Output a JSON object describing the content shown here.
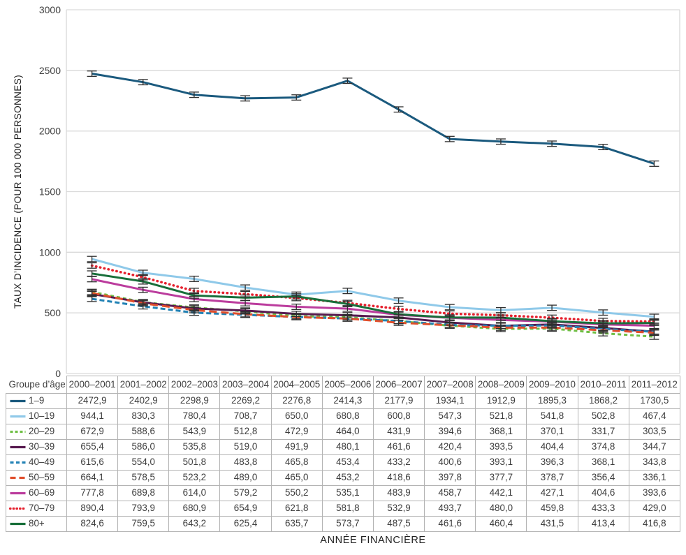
{
  "chart_data": {
    "type": "line",
    "title": "",
    "xlabel": "ANNÉE FINANCIÈRE",
    "ylabel": "TAUX D’INCIDENCE (POUR 100 000 PERSONNES)",
    "ylim": [
      0,
      3000
    ],
    "yticks": [
      0,
      500,
      1000,
      1500,
      2000,
      2500,
      3000
    ],
    "grid": true,
    "legend_position": "table-left-column",
    "error_bars": true,
    "error_margin_approx": 22,
    "categories": [
      "2000–2001",
      "2001–2002",
      "2002–2003",
      "2003–2004",
      "2004–2005",
      "2005–2006",
      "2006–2007",
      "2007–2008",
      "2008–2009",
      "2009–2010",
      "2010–2011",
      "2011–2012"
    ],
    "series": [
      {
        "name": "1–9",
        "color": "#1b5a7e",
        "dash": "solid",
        "values": [
          "2472,9",
          "2402,9",
          "2298,9",
          "2269,2",
          "2276,8",
          "2414,3",
          "2177,9",
          "1934,1",
          "1912,9",
          "1895,3",
          "1868,2",
          "1730,5"
        ]
      },
      {
        "name": "10–19",
        "color": "#8fc9e9",
        "dash": "solid",
        "values": [
          "944,1",
          "830,3",
          "780,4",
          "708,7",
          "650,0",
          "680,8",
          "600,8",
          "547,3",
          "521,8",
          "541,8",
          "502,8",
          "467,4"
        ]
      },
      {
        "name": "20–29",
        "color": "#6fbf45",
        "dash": "short-dash",
        "values": [
          "672,9",
          "588,6",
          "543,9",
          "512,8",
          "472,9",
          "464,0",
          "431,9",
          "394,6",
          "368,1",
          "370,1",
          "331,7",
          "303,5"
        ]
      },
      {
        "name": "30–39",
        "color": "#571a4f",
        "dash": "solid",
        "values": [
          "655,4",
          "586,0",
          "535,8",
          "519,0",
          "491,9",
          "480,1",
          "461,6",
          "420,4",
          "393,5",
          "404,4",
          "374,8",
          "344,7"
        ]
      },
      {
        "name": "40–49",
        "color": "#2282b5",
        "dash": "dash",
        "values": [
          "615,6",
          "554,0",
          "501,8",
          "483,8",
          "465,8",
          "453,4",
          "433,2",
          "400,6",
          "393,1",
          "396,3",
          "368,1",
          "343,8"
        ]
      },
      {
        "name": "50–59",
        "color": "#e04e2b",
        "dash": "long-dash",
        "values": [
          "664,1",
          "578,5",
          "523,2",
          "489,0",
          "465,0",
          "453,2",
          "418,6",
          "397,8",
          "377,7",
          "378,7",
          "356,4",
          "336,1"
        ]
      },
      {
        "name": "60–69",
        "color": "#bb3c9d",
        "dash": "solid",
        "values": [
          "777,8",
          "689,8",
          "614,0",
          "579,2",
          "550,2",
          "535,1",
          "483,9",
          "458,7",
          "442,1",
          "427,1",
          "404,6",
          "393,6"
        ]
      },
      {
        "name": "70–79",
        "color": "#e5202d",
        "dash": "dotted",
        "values": [
          "890,4",
          "793,9",
          "680,9",
          "654,9",
          "621,8",
          "581,8",
          "532,9",
          "493,7",
          "480,0",
          "459,8",
          "433,3",
          "429,0"
        ]
      },
      {
        "name": "80+",
        "color": "#186f3a",
        "dash": "solid",
        "values": [
          "824,6",
          "759,5",
          "643,2",
          "625,4",
          "635,7",
          "573,7",
          "487,5",
          "461,6",
          "460,4",
          "431,5",
          "413,4",
          "416,8"
        ]
      }
    ],
    "colors": {
      "gridline": "#d9d9d9",
      "table_border": "#b3b3b3",
      "error_bar": "#2e2e2e",
      "text": "#3d3d3d"
    }
  },
  "table": {
    "corner_header": "Groupe d’âge"
  }
}
